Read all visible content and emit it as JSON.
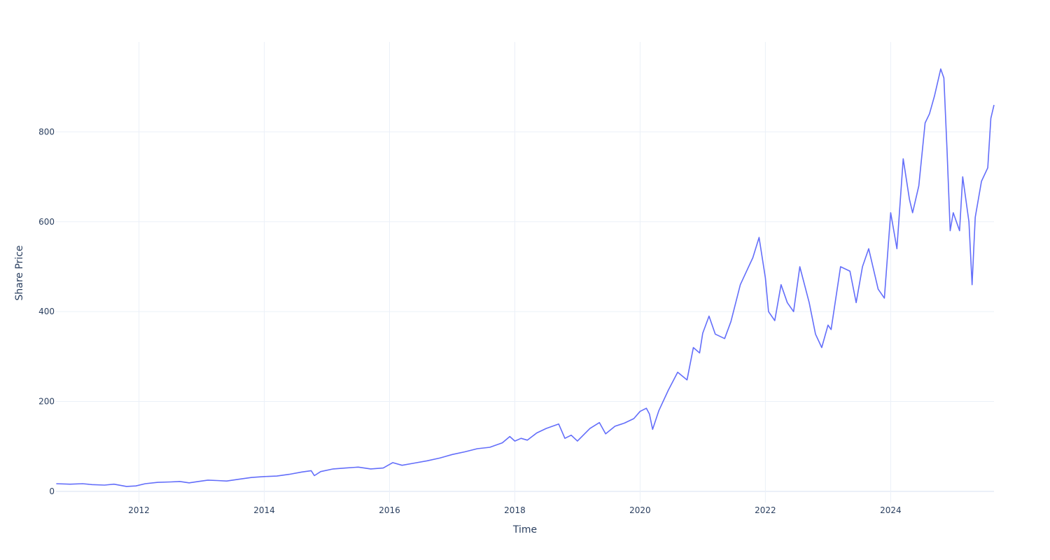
{
  "chart_data": {
    "type": "line",
    "title": "",
    "xlabel": "Time",
    "ylabel": "Share Price",
    "x_tick_labels": [
      "2012",
      "2014",
      "2016",
      "2018",
      "2020",
      "2022",
      "2024"
    ],
    "y_tick_labels": [
      "0",
      "200",
      "400",
      "600",
      "800"
    ],
    "y_ticks": [
      0,
      200,
      400,
      600,
      800
    ],
    "xlim": [
      2010.675,
      2025.65
    ],
    "ylim": [
      -25,
      1000
    ],
    "grid": true,
    "legend": "none",
    "line_color": "#636efa",
    "series": [
      {
        "x": [
          2010.68,
          2010.9,
          2011.1,
          2011.25,
          2011.45,
          2011.6,
          2011.8,
          2011.95,
          2012.1,
          2012.3,
          2012.5,
          2012.65,
          2012.8,
          2012.95,
          2013.1,
          2013.25,
          2013.4,
          2013.6,
          2013.8,
          2014.0,
          2014.2,
          2014.4,
          2014.6,
          2014.75,
          2014.8,
          2014.9,
          2015.1,
          2015.3,
          2015.5,
          2015.7,
          2015.9,
          2016.05,
          2016.2,
          2016.4,
          2016.6,
          2016.8,
          2017.0,
          2017.2,
          2017.4,
          2017.6,
          2017.8,
          2017.92,
          2018.0,
          2018.1,
          2018.2,
          2018.35,
          2018.5,
          2018.7,
          2018.8,
          2018.9,
          2019.0,
          2019.2,
          2019.35,
          2019.45,
          2019.6,
          2019.75,
          2019.9,
          2020.0,
          2020.1,
          2020.15,
          2020.2,
          2020.3,
          2020.45,
          2020.6,
          2020.75,
          2020.85,
          2020.95,
          2021.0,
          2021.1,
          2021.2,
          2021.35,
          2021.45,
          2021.6,
          2021.7,
          2021.8,
          2021.9,
          2022.0,
          2022.05,
          2022.15,
          2022.25,
          2022.35,
          2022.45,
          2022.55,
          2022.7,
          2022.8,
          2022.9,
          2023.0,
          2023.05,
          2023.2,
          2023.35,
          2023.45,
          2023.55,
          2023.65,
          2023.75,
          2023.8,
          2023.9,
          2024.0,
          2024.1,
          2024.2,
          2024.3,
          2024.35,
          2024.45,
          2024.55,
          2024.62,
          2024.7,
          2024.8,
          2024.85,
          2024.9,
          2024.95,
          2025.0,
          2025.1,
          2025.15,
          2025.25,
          2025.3,
          2025.35,
          2025.45,
          2025.55,
          2025.6,
          2025.65
        ],
        "y": [
          17,
          16,
          17,
          15,
          14,
          16,
          11,
          12,
          17,
          20,
          21,
          22,
          19,
          22,
          25,
          24,
          23,
          27,
          31,
          33,
          34,
          38,
          43,
          46,
          35,
          44,
          50,
          52,
          54,
          50,
          52,
          64,
          58,
          63,
          68,
          74,
          82,
          88,
          95,
          98,
          108,
          122,
          112,
          118,
          114,
          130,
          140,
          150,
          118,
          125,
          112,
          140,
          153,
          128,
          145,
          152,
          162,
          178,
          185,
          172,
          138,
          180,
          225,
          265,
          248,
          320,
          308,
          352,
          390,
          350,
          340,
          378,
          460,
          490,
          520,
          565,
          475,
          400,
          380,
          460,
          420,
          400,
          500,
          420,
          350,
          320,
          370,
          360,
          500,
          490,
          420,
          500,
          540,
          480,
          450,
          430,
          620,
          540,
          740,
          650,
          620,
          680,
          820,
          840,
          880,
          940,
          920,
          760,
          580,
          620,
          580,
          700,
          600,
          460,
          610,
          690,
          720,
          830,
          860
        ]
      }
    ]
  }
}
